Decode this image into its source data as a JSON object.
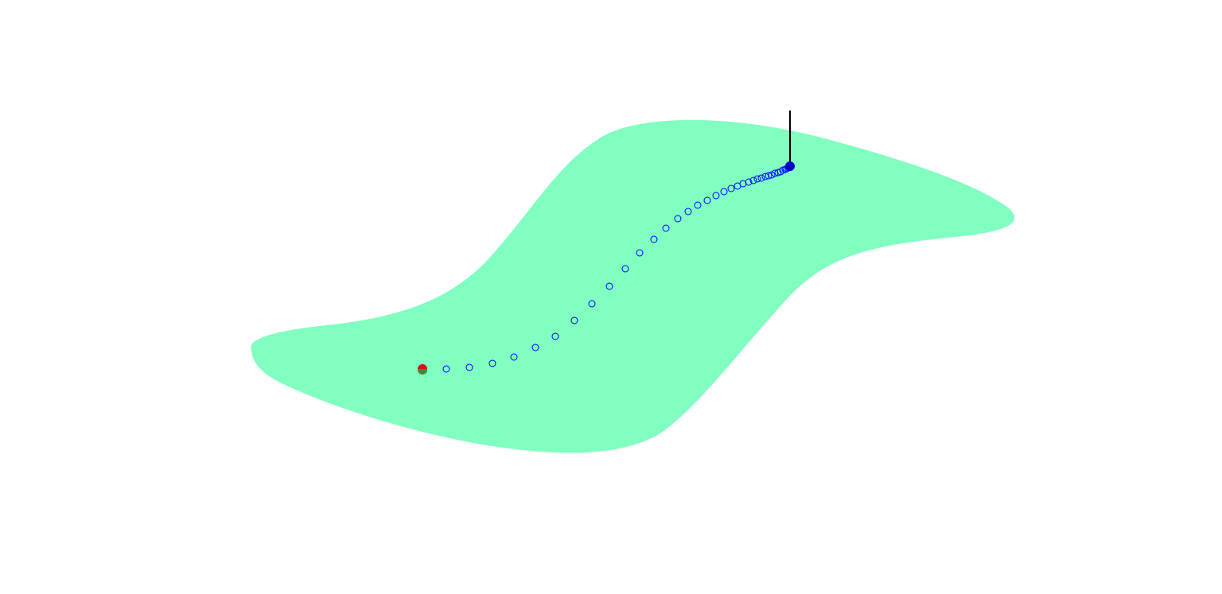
{
  "scene": {
    "background_color": "#ffffff",
    "surface_color": "#80ffc0",
    "path_marker_color": "#0000ff",
    "start_marker_colors": [
      "#e8001c",
      "#3a8a3a"
    ],
    "end_marker_color": "#0000cc",
    "pole_color": "#000000",
    "path_marker_count": 38
  }
}
